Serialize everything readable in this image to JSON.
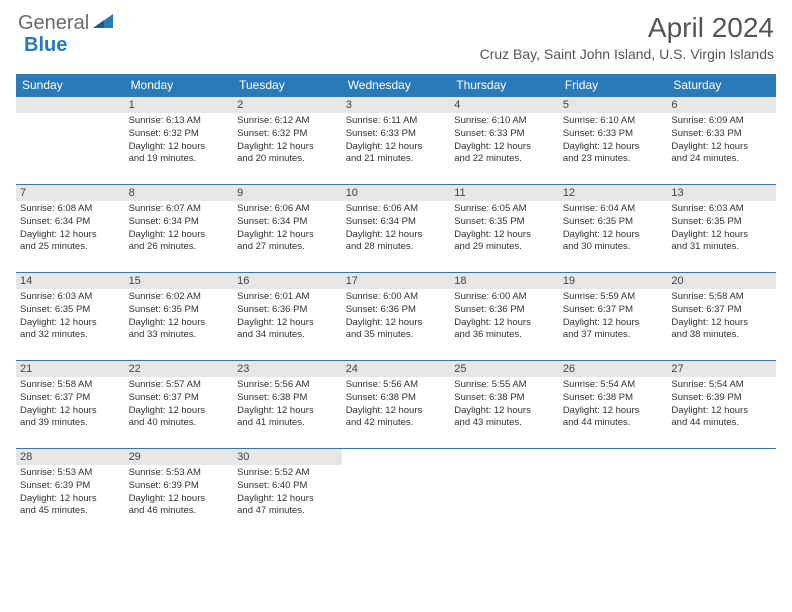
{
  "logo": {
    "word1": "General",
    "word2": "Blue"
  },
  "title": "April 2024",
  "location": "Cruz Bay, Saint John Island, U.S. Virgin Islands",
  "colors": {
    "header_bg": "#2a7ab8",
    "header_text": "#ffffff",
    "daynum_bg": "#e6e6e6",
    "page_bg": "#ffffff",
    "text": "#333333",
    "border": "#2a7ab8"
  },
  "typography": {
    "title_fontsize": 28,
    "location_fontsize": 14,
    "header_fontsize": 12,
    "cell_fontsize": 9.5
  },
  "weekdays": [
    "Sunday",
    "Monday",
    "Tuesday",
    "Wednesday",
    "Thursday",
    "Friday",
    "Saturday"
  ],
  "grid": [
    [
      null,
      {
        "n": "1",
        "sr": "Sunrise: 6:13 AM",
        "ss": "Sunset: 6:32 PM",
        "d1": "Daylight: 12 hours",
        "d2": "and 19 minutes."
      },
      {
        "n": "2",
        "sr": "Sunrise: 6:12 AM",
        "ss": "Sunset: 6:32 PM",
        "d1": "Daylight: 12 hours",
        "d2": "and 20 minutes."
      },
      {
        "n": "3",
        "sr": "Sunrise: 6:11 AM",
        "ss": "Sunset: 6:33 PM",
        "d1": "Daylight: 12 hours",
        "d2": "and 21 minutes."
      },
      {
        "n": "4",
        "sr": "Sunrise: 6:10 AM",
        "ss": "Sunset: 6:33 PM",
        "d1": "Daylight: 12 hours",
        "d2": "and 22 minutes."
      },
      {
        "n": "5",
        "sr": "Sunrise: 6:10 AM",
        "ss": "Sunset: 6:33 PM",
        "d1": "Daylight: 12 hours",
        "d2": "and 23 minutes."
      },
      {
        "n": "6",
        "sr": "Sunrise: 6:09 AM",
        "ss": "Sunset: 6:33 PM",
        "d1": "Daylight: 12 hours",
        "d2": "and 24 minutes."
      }
    ],
    [
      {
        "n": "7",
        "sr": "Sunrise: 6:08 AM",
        "ss": "Sunset: 6:34 PM",
        "d1": "Daylight: 12 hours",
        "d2": "and 25 minutes."
      },
      {
        "n": "8",
        "sr": "Sunrise: 6:07 AM",
        "ss": "Sunset: 6:34 PM",
        "d1": "Daylight: 12 hours",
        "d2": "and 26 minutes."
      },
      {
        "n": "9",
        "sr": "Sunrise: 6:06 AM",
        "ss": "Sunset: 6:34 PM",
        "d1": "Daylight: 12 hours",
        "d2": "and 27 minutes."
      },
      {
        "n": "10",
        "sr": "Sunrise: 6:06 AM",
        "ss": "Sunset: 6:34 PM",
        "d1": "Daylight: 12 hours",
        "d2": "and 28 minutes."
      },
      {
        "n": "11",
        "sr": "Sunrise: 6:05 AM",
        "ss": "Sunset: 6:35 PM",
        "d1": "Daylight: 12 hours",
        "d2": "and 29 minutes."
      },
      {
        "n": "12",
        "sr": "Sunrise: 6:04 AM",
        "ss": "Sunset: 6:35 PM",
        "d1": "Daylight: 12 hours",
        "d2": "and 30 minutes."
      },
      {
        "n": "13",
        "sr": "Sunrise: 6:03 AM",
        "ss": "Sunset: 6:35 PM",
        "d1": "Daylight: 12 hours",
        "d2": "and 31 minutes."
      }
    ],
    [
      {
        "n": "14",
        "sr": "Sunrise: 6:03 AM",
        "ss": "Sunset: 6:35 PM",
        "d1": "Daylight: 12 hours",
        "d2": "and 32 minutes."
      },
      {
        "n": "15",
        "sr": "Sunrise: 6:02 AM",
        "ss": "Sunset: 6:35 PM",
        "d1": "Daylight: 12 hours",
        "d2": "and 33 minutes."
      },
      {
        "n": "16",
        "sr": "Sunrise: 6:01 AM",
        "ss": "Sunset: 6:36 PM",
        "d1": "Daylight: 12 hours",
        "d2": "and 34 minutes."
      },
      {
        "n": "17",
        "sr": "Sunrise: 6:00 AM",
        "ss": "Sunset: 6:36 PM",
        "d1": "Daylight: 12 hours",
        "d2": "and 35 minutes."
      },
      {
        "n": "18",
        "sr": "Sunrise: 6:00 AM",
        "ss": "Sunset: 6:36 PM",
        "d1": "Daylight: 12 hours",
        "d2": "and 36 minutes."
      },
      {
        "n": "19",
        "sr": "Sunrise: 5:59 AM",
        "ss": "Sunset: 6:37 PM",
        "d1": "Daylight: 12 hours",
        "d2": "and 37 minutes."
      },
      {
        "n": "20",
        "sr": "Sunrise: 5:58 AM",
        "ss": "Sunset: 6:37 PM",
        "d1": "Daylight: 12 hours",
        "d2": "and 38 minutes."
      }
    ],
    [
      {
        "n": "21",
        "sr": "Sunrise: 5:58 AM",
        "ss": "Sunset: 6:37 PM",
        "d1": "Daylight: 12 hours",
        "d2": "and 39 minutes."
      },
      {
        "n": "22",
        "sr": "Sunrise: 5:57 AM",
        "ss": "Sunset: 6:37 PM",
        "d1": "Daylight: 12 hours",
        "d2": "and 40 minutes."
      },
      {
        "n": "23",
        "sr": "Sunrise: 5:56 AM",
        "ss": "Sunset: 6:38 PM",
        "d1": "Daylight: 12 hours",
        "d2": "and 41 minutes."
      },
      {
        "n": "24",
        "sr": "Sunrise: 5:56 AM",
        "ss": "Sunset: 6:38 PM",
        "d1": "Daylight: 12 hours",
        "d2": "and 42 minutes."
      },
      {
        "n": "25",
        "sr": "Sunrise: 5:55 AM",
        "ss": "Sunset: 6:38 PM",
        "d1": "Daylight: 12 hours",
        "d2": "and 43 minutes."
      },
      {
        "n": "26",
        "sr": "Sunrise: 5:54 AM",
        "ss": "Sunset: 6:38 PM",
        "d1": "Daylight: 12 hours",
        "d2": "and 44 minutes."
      },
      {
        "n": "27",
        "sr": "Sunrise: 5:54 AM",
        "ss": "Sunset: 6:39 PM",
        "d1": "Daylight: 12 hours",
        "d2": "and 44 minutes."
      }
    ],
    [
      {
        "n": "28",
        "sr": "Sunrise: 5:53 AM",
        "ss": "Sunset: 6:39 PM",
        "d1": "Daylight: 12 hours",
        "d2": "and 45 minutes."
      },
      {
        "n": "29",
        "sr": "Sunrise: 5:53 AM",
        "ss": "Sunset: 6:39 PM",
        "d1": "Daylight: 12 hours",
        "d2": "and 46 minutes."
      },
      {
        "n": "30",
        "sr": "Sunrise: 5:52 AM",
        "ss": "Sunset: 6:40 PM",
        "d1": "Daylight: 12 hours",
        "d2": "and 47 minutes."
      },
      null,
      null,
      null,
      null
    ]
  ]
}
